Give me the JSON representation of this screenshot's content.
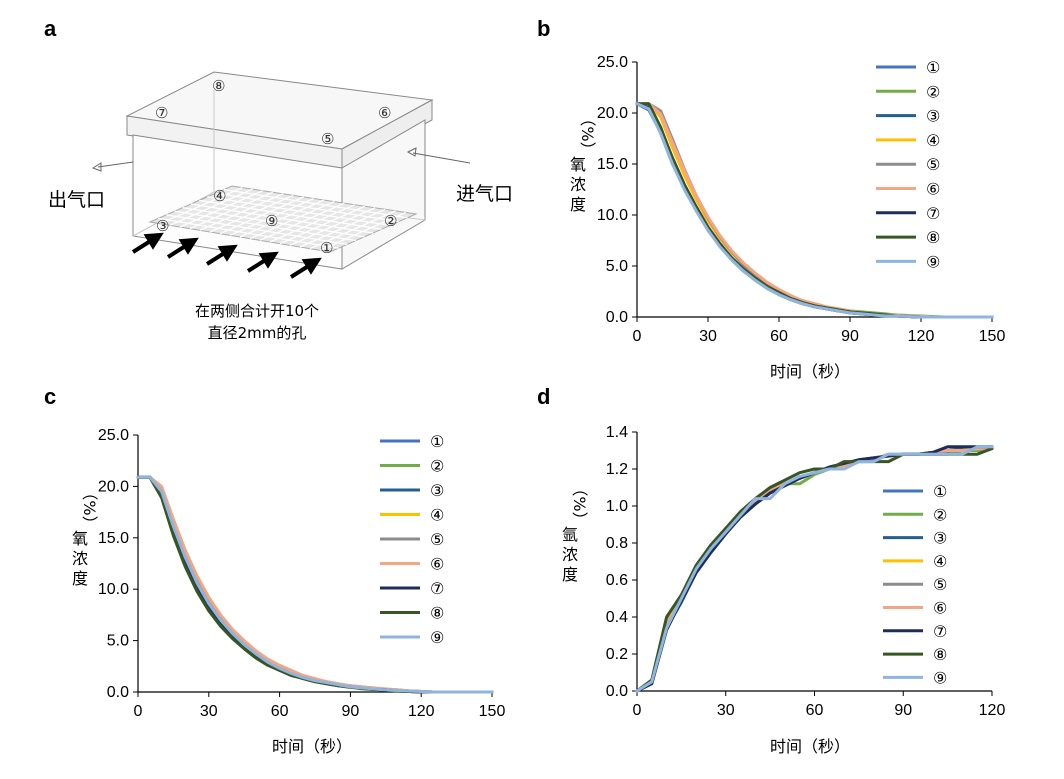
{
  "colors": [
    "#4472c4",
    "#70ad47",
    "#255e91",
    "#ffc000",
    "#8c8c8c",
    "#f4a582",
    "#1f2d5a",
    "#375623",
    "#8fb4e0"
  ],
  "panel_a": {
    "letter": "a",
    "point_labels": [
      "①",
      "②",
      "③",
      "④",
      "⑤",
      "⑥",
      "⑦",
      "⑧",
      "⑨"
    ],
    "outlet_label": "出气口",
    "inlet_label": "进气口",
    "caption_line1": "在两侧合计开10个",
    "caption_line2": "直径2mm的孔"
  },
  "chart_data": [
    {
      "panel": "b",
      "type": "line",
      "xlabel": "时间（秒）",
      "ylabel": "氧浓度（%）",
      "xlim": [
        0,
        150
      ],
      "ylim": [
        0,
        25
      ],
      "xticks": [
        "0",
        "30",
        "60",
        "90",
        "120",
        "150"
      ],
      "yticks": [
        "0.0",
        "5.0",
        "10.0",
        "15.0",
        "20.0",
        "25.0"
      ],
      "x": [
        0,
        5,
        10,
        15,
        20,
        25,
        30,
        35,
        40,
        45,
        50,
        55,
        60,
        65,
        70,
        75,
        80,
        85,
        90,
        95,
        100,
        105,
        110,
        115,
        120,
        125,
        130,
        135,
        140,
        145,
        150
      ],
      "series": [
        {
          "name": "①",
          "values": [
            20.9,
            20.6,
            18.0,
            15.0,
            12.7,
            10.6,
            8.6,
            7.1,
            5.7,
            4.6,
            3.7,
            2.9,
            2.2,
            1.7,
            1.3,
            1.0,
            0.8,
            0.6,
            0.4,
            0.3,
            0.2,
            0.1,
            0.1,
            0.05,
            0,
            0,
            0,
            0,
            0,
            0,
            0
          ]
        },
        {
          "name": "②",
          "values": [
            20.9,
            20.9,
            19.8,
            16.8,
            14.0,
            11.6,
            9.6,
            7.9,
            6.4,
            5.2,
            4.2,
            3.3,
            2.6,
            2.0,
            1.6,
            1.3,
            1.0,
            0.8,
            0.6,
            0.5,
            0.4,
            0.3,
            0.2,
            0.15,
            0.1,
            0.05,
            0,
            0,
            0,
            0,
            0
          ]
        },
        {
          "name": "③",
          "values": [
            20.9,
            20.3,
            18.1,
            15.1,
            12.6,
            10.5,
            8.5,
            7.0,
            5.6,
            4.5,
            3.6,
            2.8,
            2.2,
            1.7,
            1.3,
            1.0,
            0.8,
            0.6,
            0.4,
            0.3,
            0.2,
            0.1,
            0.1,
            0.05,
            0,
            0,
            0,
            0,
            0,
            0,
            0
          ]
        },
        {
          "name": "④",
          "values": [
            20.9,
            20.9,
            19.6,
            16.6,
            13.9,
            11.5,
            9.4,
            7.7,
            6.3,
            5.1,
            4.1,
            3.3,
            2.6,
            2.0,
            1.6,
            1.2,
            1.0,
            0.8,
            0.6,
            0.4,
            0.3,
            0.2,
            0.15,
            0.1,
            0.05,
            0,
            0,
            0,
            0,
            0,
            0
          ]
        },
        {
          "name": "⑤",
          "values": [
            20.9,
            20.9,
            20.2,
            17.4,
            14.5,
            11.9,
            9.7,
            7.9,
            6.4,
            5.1,
            4.1,
            3.2,
            2.5,
            1.9,
            1.5,
            1.2,
            0.9,
            0.7,
            0.5,
            0.4,
            0.3,
            0.2,
            0.1,
            0.05,
            0,
            0,
            0,
            0,
            0,
            0,
            0
          ]
        },
        {
          "name": "⑥",
          "values": [
            20.9,
            20.9,
            19.9,
            17.1,
            14.4,
            11.9,
            9.8,
            8.0,
            6.5,
            5.3,
            4.3,
            3.4,
            2.7,
            2.1,
            1.6,
            1.3,
            1.0,
            0.8,
            0.6,
            0.4,
            0.3,
            0.2,
            0.15,
            0.1,
            0.05,
            0,
            0,
            0,
            0,
            0,
            0
          ]
        },
        {
          "name": "⑦",
          "values": [
            20.9,
            20.5,
            18.5,
            15.6,
            13.0,
            10.8,
            8.8,
            7.2,
            5.8,
            4.7,
            3.7,
            2.9,
            2.3,
            1.8,
            1.4,
            1.1,
            0.8,
            0.6,
            0.5,
            0.3,
            0.2,
            0.1,
            0.1,
            0.05,
            0,
            0,
            0,
            0,
            0,
            0,
            0
          ]
        },
        {
          "name": "⑧",
          "values": [
            20.9,
            20.9,
            18.6,
            15.5,
            12.9,
            10.7,
            8.7,
            7.1,
            5.8,
            4.7,
            3.8,
            3.0,
            2.4,
            1.8,
            1.4,
            1.1,
            0.9,
            0.7,
            0.5,
            0.4,
            0.3,
            0.2,
            0.1,
            0.05,
            0,
            0,
            0,
            0,
            0,
            0,
            0
          ]
        },
        {
          "name": "⑨",
          "values": [
            20.9,
            20.4,
            18.0,
            15.0,
            12.5,
            10.4,
            8.5,
            6.9,
            5.6,
            4.5,
            3.6,
            2.8,
            2.2,
            1.7,
            1.3,
            1.0,
            0.8,
            0.6,
            0.4,
            0.3,
            0.2,
            0.1,
            0.1,
            0.05,
            0,
            0,
            0,
            0,
            0,
            0,
            0
          ]
        }
      ]
    },
    {
      "panel": "c",
      "type": "line",
      "xlabel": "时间（秒）",
      "ylabel": "氧浓度（%）",
      "xlim": [
        0,
        150
      ],
      "ylim": [
        0,
        25
      ],
      "xticks": [
        "0",
        "30",
        "60",
        "90",
        "120",
        "150"
      ],
      "yticks": [
        "0.0",
        "5.0",
        "10.0",
        "15.0",
        "20.0",
        "25.0"
      ],
      "x": [
        0,
        5,
        10,
        15,
        20,
        25,
        30,
        35,
        40,
        45,
        50,
        55,
        60,
        65,
        70,
        75,
        80,
        85,
        90,
        95,
        100,
        105,
        110,
        115,
        120,
        125,
        130,
        135,
        140,
        145,
        150
      ],
      "series": [
        {
          "name": "①",
          "values": [
            20.9,
            20.9,
            19.4,
            16.0,
            13.0,
            10.5,
            8.5,
            6.9,
            5.6,
            4.5,
            3.6,
            2.9,
            2.3,
            1.8,
            1.4,
            1.1,
            0.9,
            0.7,
            0.5,
            0.4,
            0.3,
            0.2,
            0.15,
            0.1,
            0.05,
            0,
            0,
            0,
            0,
            0,
            0
          ]
        },
        {
          "name": "②",
          "values": [
            20.9,
            20.9,
            19.2,
            15.7,
            12.7,
            10.2,
            8.2,
            6.6,
            5.3,
            4.3,
            3.4,
            2.7,
            2.1,
            1.7,
            1.3,
            1.0,
            0.8,
            0.6,
            0.5,
            0.3,
            0.25,
            0.2,
            0.1,
            0.05,
            0,
            0,
            0,
            0,
            0,
            0,
            0
          ]
        },
        {
          "name": "③",
          "values": [
            20.9,
            20.9,
            19.4,
            15.9,
            12.9,
            10.4,
            8.4,
            6.8,
            5.5,
            4.4,
            3.6,
            2.8,
            2.2,
            1.7,
            1.4,
            1.1,
            0.9,
            0.7,
            0.5,
            0.4,
            0.3,
            0.2,
            0.15,
            0.1,
            0.05,
            0,
            0,
            0,
            0,
            0,
            0
          ]
        },
        {
          "name": "④",
          "values": [
            20.9,
            20.9,
            19.6,
            16.3,
            13.3,
            10.8,
            8.8,
            7.2,
            5.8,
            4.7,
            3.8,
            3.0,
            2.4,
            1.9,
            1.5,
            1.2,
            0.9,
            0.7,
            0.6,
            0.4,
            0.3,
            0.25,
            0.2,
            0.1,
            0.05,
            0,
            0,
            0,
            0,
            0,
            0
          ]
        },
        {
          "name": "⑤",
          "values": [
            20.9,
            20.9,
            19.8,
            16.5,
            13.5,
            11.0,
            8.9,
            7.3,
            5.9,
            4.8,
            3.9,
            3.1,
            2.5,
            2.0,
            1.6,
            1.2,
            1.0,
            0.8,
            0.6,
            0.5,
            0.35,
            0.25,
            0.2,
            0.1,
            0.05,
            0,
            0,
            0,
            0,
            0,
            0
          ]
        },
        {
          "name": "⑥",
          "values": [
            20.9,
            20.9,
            20.0,
            16.8,
            13.8,
            11.3,
            9.2,
            7.5,
            6.1,
            5.0,
            4.0,
            3.2,
            2.6,
            2.1,
            1.6,
            1.3,
            1.0,
            0.8,
            0.6,
            0.5,
            0.4,
            0.3,
            0.2,
            0.1,
            0.05,
            0,
            0,
            0,
            0,
            0,
            0
          ]
        },
        {
          "name": "⑦",
          "values": [
            20.9,
            20.9,
            19.3,
            15.8,
            12.8,
            10.3,
            8.3,
            6.7,
            5.4,
            4.4,
            3.5,
            2.8,
            2.2,
            1.7,
            1.3,
            1.0,
            0.8,
            0.6,
            0.5,
            0.35,
            0.25,
            0.2,
            0.1,
            0.05,
            0,
            0,
            0,
            0,
            0,
            0,
            0
          ]
        },
        {
          "name": "⑧",
          "values": [
            20.9,
            20.9,
            18.9,
            15.2,
            12.2,
            9.8,
            7.9,
            6.4,
            5.2,
            4.2,
            3.3,
            2.6,
            2.1,
            1.6,
            1.3,
            1.0,
            0.8,
            0.6,
            0.45,
            0.35,
            0.25,
            0.2,
            0.1,
            0.05,
            0,
            0,
            0,
            0,
            0,
            0,
            0
          ]
        },
        {
          "name": "⑨",
          "values": [
            20.9,
            20.9,
            19.5,
            16.1,
            13.1,
            10.6,
            8.6,
            7.0,
            5.7,
            4.6,
            3.7,
            2.9,
            2.3,
            1.8,
            1.4,
            1.1,
            0.9,
            0.7,
            0.5,
            0.4,
            0.3,
            0.2,
            0.15,
            0.1,
            0.05,
            0,
            0,
            0,
            0,
            0,
            0
          ]
        }
      ]
    },
    {
      "panel": "d",
      "type": "line",
      "xlabel": "时间（秒）",
      "ylabel": "氩浓度（%）",
      "xlim": [
        0,
        120
      ],
      "ylim": [
        0,
        1.4
      ],
      "xticks": [
        "0",
        "30",
        "60",
        "90",
        "120"
      ],
      "yticks": [
        "0.0",
        "0.2",
        "0.4",
        "0.6",
        "0.8",
        "1.0",
        "1.2",
        "1.4"
      ],
      "x": [
        0,
        5,
        10,
        15,
        20,
        25,
        30,
        35,
        40,
        45,
        50,
        55,
        60,
        65,
        70,
        75,
        80,
        85,
        90,
        95,
        100,
        105,
        110,
        115,
        120
      ],
      "series": [
        {
          "name": "①",
          "values": [
            0.0,
            0.05,
            0.35,
            0.5,
            0.65,
            0.76,
            0.86,
            0.95,
            1.02,
            1.08,
            1.12,
            1.15,
            1.18,
            1.2,
            1.22,
            1.24,
            1.26,
            1.27,
            1.28,
            1.28,
            1.29,
            1.29,
            1.3,
            1.3,
            1.31
          ]
        },
        {
          "name": "②",
          "values": [
            0.0,
            0.05,
            0.38,
            0.5,
            0.66,
            0.78,
            0.87,
            0.96,
            1.03,
            1.09,
            1.12,
            1.12,
            1.17,
            1.2,
            1.22,
            1.24,
            1.25,
            1.28,
            1.28,
            1.28,
            1.28,
            1.28,
            1.3,
            1.3,
            1.32
          ]
        },
        {
          "name": "③",
          "values": [
            0.0,
            0.04,
            0.34,
            0.48,
            0.64,
            0.75,
            0.85,
            0.94,
            1.01,
            1.07,
            1.11,
            1.15,
            1.18,
            1.21,
            1.23,
            1.25,
            1.26,
            1.27,
            1.28,
            1.28,
            1.29,
            1.3,
            1.31,
            1.31,
            1.32
          ]
        },
        {
          "name": "④",
          "values": [
            0.0,
            0.05,
            0.36,
            0.51,
            0.66,
            0.77,
            0.86,
            0.95,
            1.02,
            1.08,
            1.12,
            1.15,
            1.18,
            1.2,
            1.22,
            1.24,
            1.26,
            1.27,
            1.28,
            1.28,
            1.29,
            1.3,
            1.3,
            1.31,
            1.31
          ]
        },
        {
          "name": "⑤",
          "values": [
            0.0,
            0.05,
            0.35,
            0.5,
            0.65,
            0.76,
            0.86,
            0.95,
            1.02,
            1.08,
            1.12,
            1.15,
            1.18,
            1.2,
            1.22,
            1.24,
            1.26,
            1.27,
            1.28,
            1.28,
            1.29,
            1.3,
            1.3,
            1.31,
            1.31
          ]
        },
        {
          "name": "⑥",
          "values": [
            0.0,
            0.05,
            0.36,
            0.5,
            0.65,
            0.77,
            0.86,
            0.95,
            1.02,
            1.08,
            1.12,
            1.15,
            1.18,
            1.2,
            1.22,
            1.24,
            1.26,
            1.27,
            1.28,
            1.28,
            1.29,
            1.3,
            1.3,
            1.31,
            1.31
          ]
        },
        {
          "name": "⑦",
          "values": [
            0.0,
            0.04,
            0.33,
            0.49,
            0.64,
            0.75,
            0.85,
            0.94,
            1.01,
            1.07,
            1.11,
            1.15,
            1.18,
            1.21,
            1.23,
            1.25,
            1.26,
            1.27,
            1.28,
            1.28,
            1.29,
            1.32,
            1.32,
            1.32,
            1.32
          ]
        },
        {
          "name": "⑧",
          "values": [
            0.0,
            0.06,
            0.4,
            0.52,
            0.68,
            0.79,
            0.88,
            0.97,
            1.04,
            1.1,
            1.14,
            1.18,
            1.2,
            1.2,
            1.24,
            1.24,
            1.24,
            1.24,
            1.28,
            1.28,
            1.28,
            1.28,
            1.28,
            1.28,
            1.31
          ]
        },
        {
          "name": "⑨",
          "values": [
            0.0,
            0.05,
            0.34,
            0.5,
            0.66,
            0.77,
            0.86,
            0.95,
            1.04,
            1.04,
            1.12,
            1.16,
            1.18,
            1.2,
            1.2,
            1.24,
            1.24,
            1.28,
            1.28,
            1.28,
            1.28,
            1.28,
            1.28,
            1.32,
            1.32
          ]
        }
      ]
    }
  ]
}
